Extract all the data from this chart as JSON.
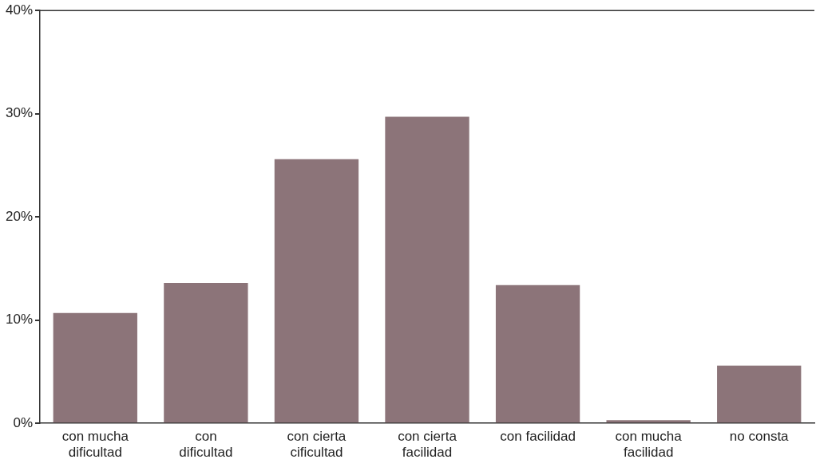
{
  "chart_data": {
    "type": "bar",
    "categories": [
      "con mucha dificultad",
      "con dificultad",
      "con cierta cificultad",
      "con cierta facilidad",
      "con facilidad",
      "con mucha facilidad",
      "no consta"
    ],
    "values": [
      10.7,
      13.6,
      25.6,
      29.7,
      13.4,
      0.3,
      5.6
    ],
    "color": "#8c7479",
    "ylim": [
      0,
      40
    ],
    "yticks": [
      {
        "value": 0,
        "label": "0%"
      },
      {
        "value": 10,
        "label": "10%"
      },
      {
        "value": 20,
        "label": "20%"
      },
      {
        "value": 30,
        "label": "30%"
      },
      {
        "value": 40,
        "label": "40%"
      }
    ],
    "grid": false,
    "legend": false
  }
}
